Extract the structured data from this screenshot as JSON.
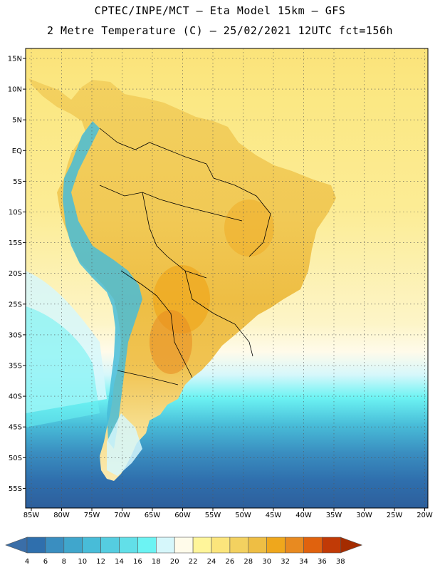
{
  "header": {
    "line1": "CPTEC/INPE/MCT –  Eta Model 15km – GFS",
    "line2": "2 Metre Temperature (C) – 25/02/2021 12UTC fct=156h"
  },
  "map": {
    "lat_labels": [
      "15N",
      "10N",
      "5N",
      "EQ",
      "5S",
      "10S",
      "15S",
      "20S",
      "25S",
      "30S",
      "35S",
      "40S",
      "45S",
      "50S",
      "55S"
    ],
    "lon_labels": [
      "85W",
      "80W",
      "75W",
      "70W",
      "65W",
      "60W",
      "55W",
      "50W",
      "45W",
      "40W",
      "35W",
      "30W",
      "25W",
      "20W"
    ],
    "grid": true
  },
  "colorbar": {
    "labels": [
      "4",
      "6",
      "8",
      "10",
      "12",
      "14",
      "16",
      "18",
      "20",
      "22",
      "24",
      "26",
      "28",
      "30",
      "32",
      "34",
      "36",
      "38"
    ],
    "colors": [
      "#3a6ea8",
      "#2f6fad",
      "#3a8ec0",
      "#40a6cc",
      "#48bcd8",
      "#55cde0",
      "#62dfe8",
      "#6cf3f3",
      "#d6f7fb",
      "#fffbea",
      "#fff59a",
      "#fbe57c",
      "#f3d160",
      "#eebe44",
      "#efa71c",
      "#e88a20",
      "#e0620e",
      "#c13a06",
      "#a42c00"
    ]
  }
}
